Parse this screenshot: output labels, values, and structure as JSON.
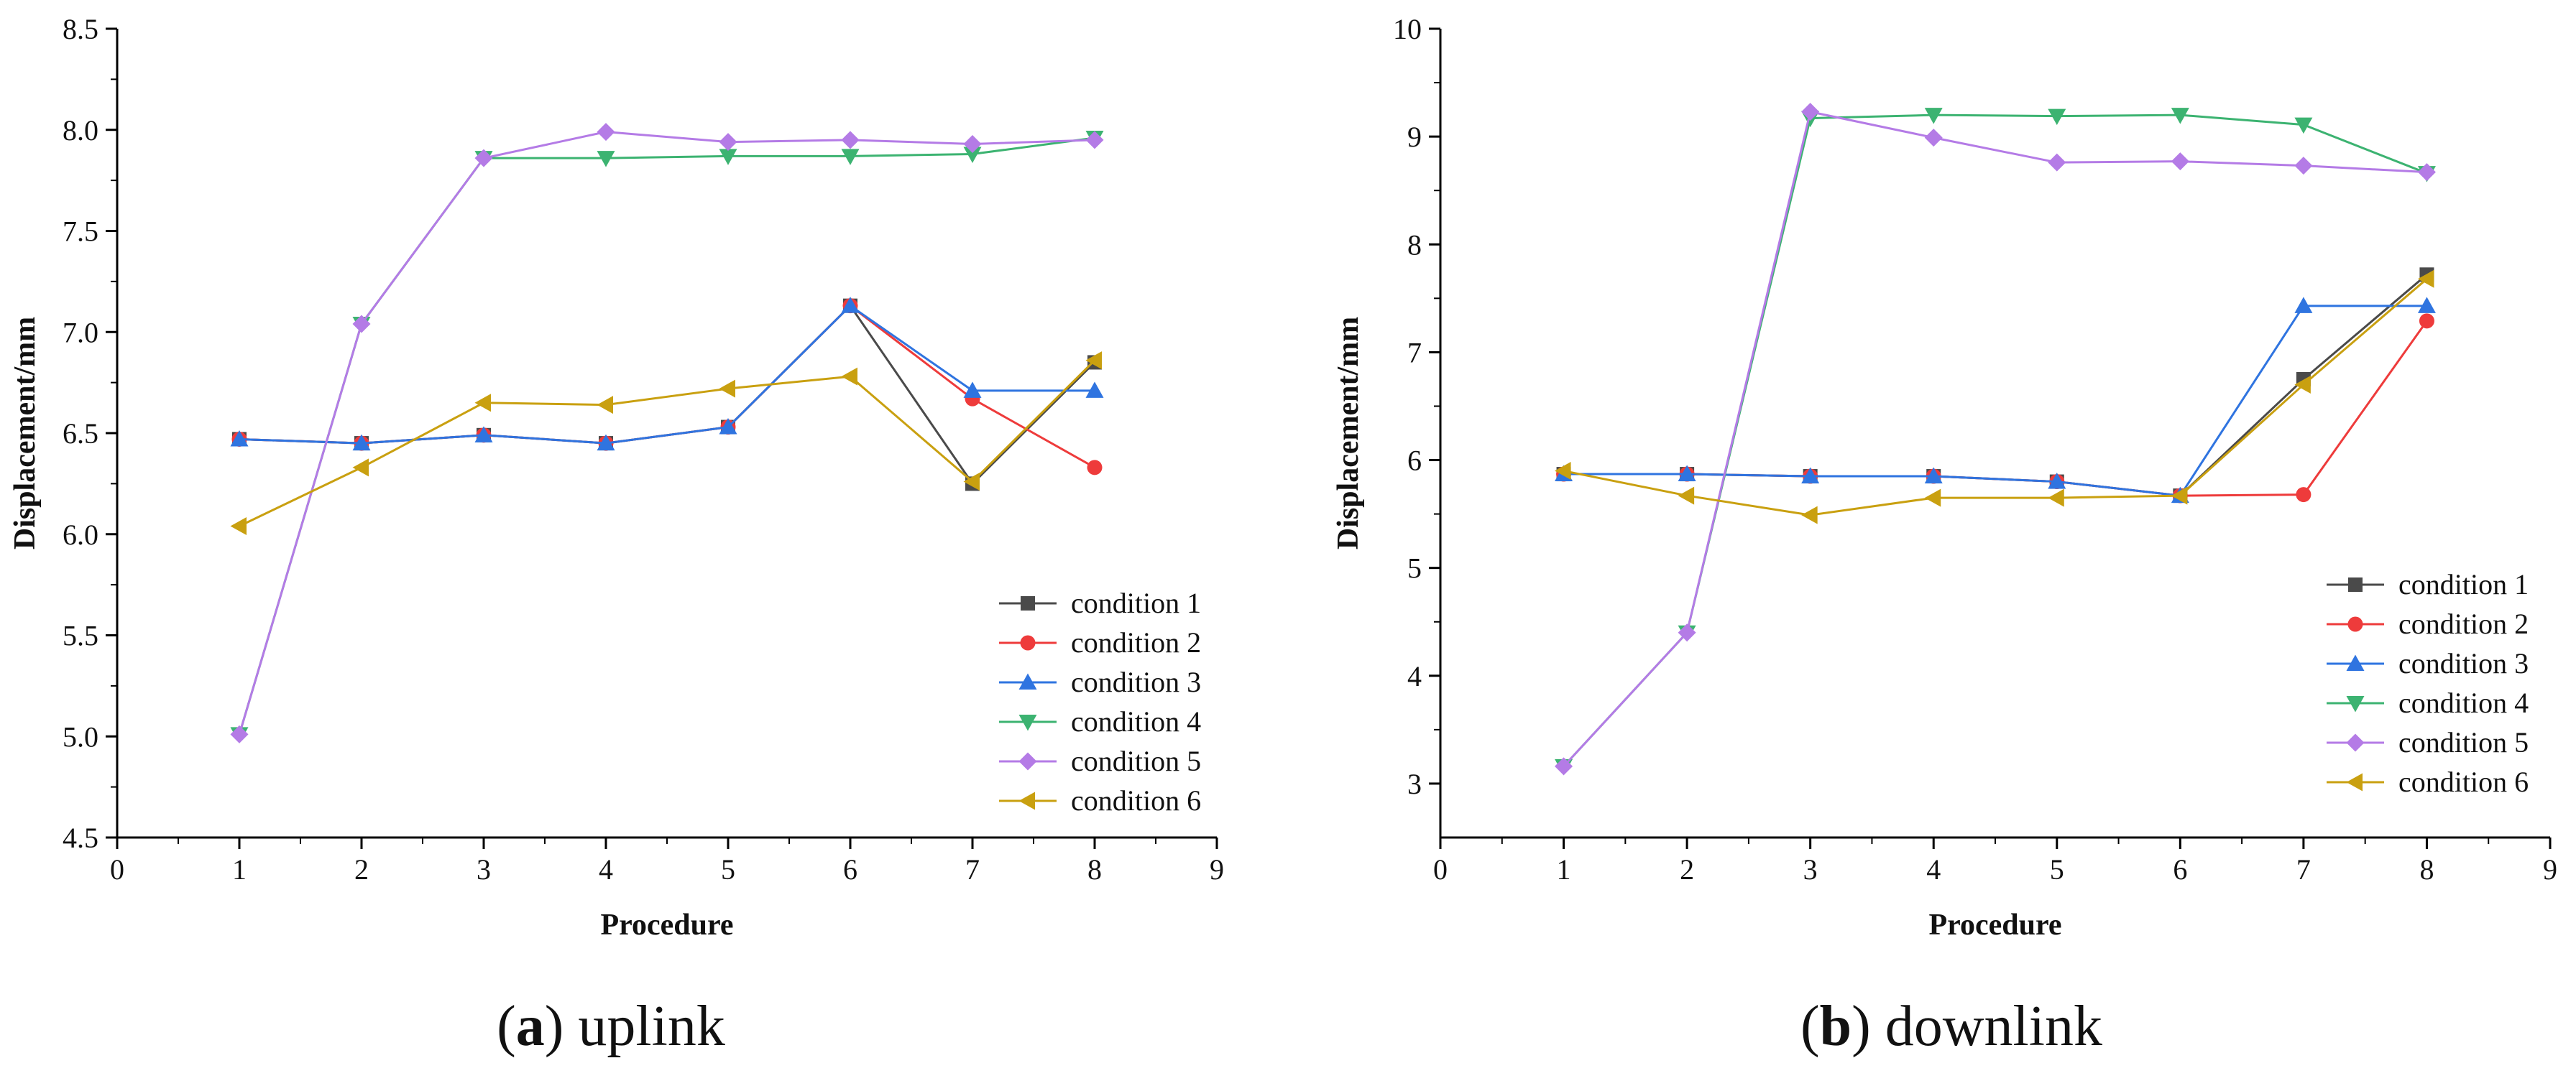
{
  "colors": {
    "condition_1": "#4a4a4a",
    "condition_2": "#ee3b3b",
    "condition_3": "#2f74e0",
    "condition_4": "#3cb371",
    "condition_5": "#b47be6",
    "condition_6": "#c9a010",
    "axis": "#000000"
  },
  "chart_data": [
    {
      "type": "line",
      "caption_letter": "a",
      "caption_text": "uplink",
      "xlabel": "Procedure",
      "ylabel": "Displacement/mm",
      "xlim": [
        0,
        9
      ],
      "ylim": [
        4.5,
        8.5
      ],
      "xticks": [
        0,
        1,
        2,
        3,
        4,
        5,
        6,
        7,
        8,
        9
      ],
      "yticks": [
        "4.5",
        "5.0",
        "5.5",
        "6.0",
        "6.5",
        "7.0",
        "7.5",
        "8.0",
        "8.5"
      ],
      "legend_position": "bottom-right",
      "x": [
        1,
        2,
        3,
        4,
        5,
        6,
        7,
        8
      ],
      "series": [
        {
          "name": "condition 1",
          "marker": "square",
          "color_key": "condition_1",
          "values": [
            6.47,
            6.45,
            6.49,
            6.45,
            6.53,
            7.13,
            6.25,
            6.85
          ]
        },
        {
          "name": "condition 2",
          "marker": "circle",
          "color_key": "condition_2",
          "values": [
            6.47,
            6.45,
            6.49,
            6.45,
            6.53,
            7.13,
            6.67,
            6.33
          ]
        },
        {
          "name": "condition 3",
          "marker": "triangle-up",
          "color_key": "condition_3",
          "values": [
            6.47,
            6.45,
            6.49,
            6.45,
            6.53,
            7.13,
            6.71,
            6.71
          ]
        },
        {
          "name": "condition 4",
          "marker": "triangle-down",
          "color_key": "condition_4",
          "values": [
            5.01,
            7.04,
            7.86,
            7.86,
            7.87,
            7.87,
            7.88,
            7.96
          ]
        },
        {
          "name": "condition 5",
          "marker": "diamond",
          "color_key": "condition_5",
          "values": [
            5.01,
            7.04,
            7.86,
            7.99,
            7.94,
            7.95,
            7.93,
            7.95
          ]
        },
        {
          "name": "condition 6",
          "marker": "triangle-left",
          "color_key": "condition_6",
          "values": [
            6.04,
            6.33,
            6.65,
            6.64,
            6.72,
            6.78,
            6.26,
            6.86
          ]
        }
      ]
    },
    {
      "type": "line",
      "caption_letter": "b",
      "caption_text": "downlink",
      "xlabel": "Procedure",
      "ylabel": "Displacement/mm",
      "xlim": [
        0,
        9
      ],
      "ylim": [
        2.5,
        10
      ],
      "xticks": [
        0,
        1,
        2,
        3,
        4,
        5,
        6,
        7,
        8,
        9
      ],
      "yticks": [
        "3",
        "4",
        "5",
        "6",
        "7",
        "8",
        "9",
        "10"
      ],
      "legend_position": "bottom-right",
      "x": [
        1,
        2,
        3,
        4,
        5,
        6,
        7,
        8
      ],
      "series": [
        {
          "name": "condition 1",
          "marker": "square",
          "color_key": "condition_1",
          "values": [
            5.87,
            5.87,
            5.85,
            5.85,
            5.8,
            5.67,
            6.75,
            7.72
          ]
        },
        {
          "name": "condition 2",
          "marker": "circle",
          "color_key": "condition_2",
          "values": [
            5.87,
            5.87,
            5.85,
            5.85,
            5.8,
            5.67,
            5.68,
            7.29
          ]
        },
        {
          "name": "condition 3",
          "marker": "triangle-up",
          "color_key": "condition_3",
          "values": [
            5.87,
            5.87,
            5.85,
            5.85,
            5.8,
            5.67,
            7.43,
            7.43
          ]
        },
        {
          "name": "condition 4",
          "marker": "triangle-down",
          "color_key": "condition_4",
          "values": [
            3.16,
            4.4,
            9.17,
            9.2,
            9.19,
            9.2,
            9.11,
            8.66
          ]
        },
        {
          "name": "condition 5",
          "marker": "diamond",
          "color_key": "condition_5",
          "values": [
            3.16,
            4.4,
            9.23,
            8.99,
            8.76,
            8.77,
            8.73,
            8.67
          ]
        },
        {
          "name": "condition 6",
          "marker": "triangle-left",
          "color_key": "condition_6",
          "values": [
            5.9,
            5.67,
            5.49,
            5.65,
            5.65,
            5.67,
            6.7,
            7.68
          ]
        }
      ]
    }
  ]
}
